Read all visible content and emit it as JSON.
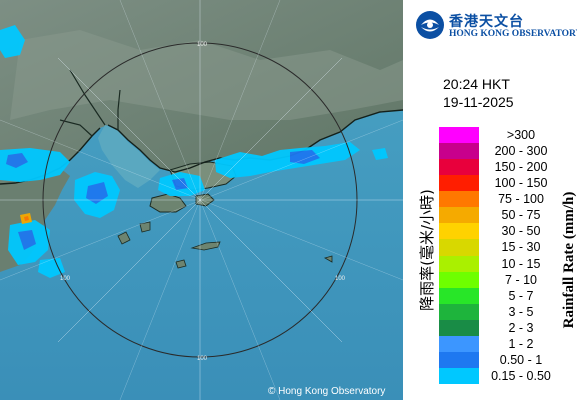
{
  "header": {
    "org_name_cn": "香港天文台",
    "org_name_en": "HONG KONG OBSERVATORY",
    "time": "20:24 HKT",
    "date": "19-11-2025"
  },
  "legend": {
    "title_cn": "降雨率(毫米/小時)",
    "title_en": "Rainfall Rate (mm/h)",
    "items": [
      {
        "label": ">300",
        "color": "#ff00ff"
      },
      {
        "label": "200 - 300",
        "color": "#c8008c"
      },
      {
        "label": "150 - 200",
        "color": "#e8003c"
      },
      {
        "label": "100 - 150",
        "color": "#ff1e00"
      },
      {
        "label": "75 - 100",
        "color": "#ff7800"
      },
      {
        "label": "50 - 75",
        "color": "#f5aa00"
      },
      {
        "label": "30 - 50",
        "color": "#ffd200"
      },
      {
        "label": "15 - 30",
        "color": "#d8d800"
      },
      {
        "label": "10 - 15",
        "color": "#aaf000"
      },
      {
        "label": "7 - 10",
        "color": "#6eff00"
      },
      {
        "label": "5 - 7",
        "color": "#28e628"
      },
      {
        "label": "3 - 5",
        "color": "#1eb43c"
      },
      {
        "label": "2 - 3",
        "color": "#198c46"
      },
      {
        "label": "1 - 2",
        "color": "#3c96ff"
      },
      {
        "label": "0.50 - 1",
        "color": "#1e78f0"
      },
      {
        "label": "0.15 - 0.50",
        "color": "#00c8ff"
      }
    ]
  },
  "map": {
    "range_ring_label": "100",
    "copyright": "© Hong Kong Observatory"
  }
}
